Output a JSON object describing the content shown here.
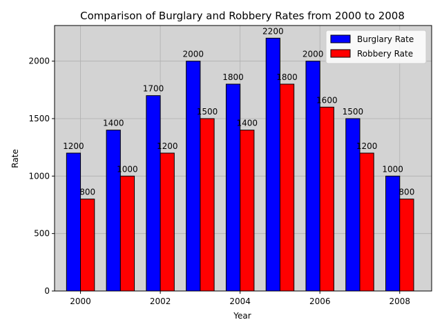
{
  "chart_data": {
    "type": "bar",
    "title": "Comparison of Burglary and Robbery Rates from 2000 to 2008",
    "xlabel": "Year",
    "ylabel": "Rate",
    "categories": [
      2000,
      2001,
      2002,
      2003,
      2004,
      2005,
      2006,
      2007,
      2008
    ],
    "x_ticks": [
      "2000",
      "2002",
      "2004",
      "2006",
      "2008"
    ],
    "y_ticks": [
      0,
      500,
      1000,
      1500,
      2000
    ],
    "ylim": [
      0,
      2310
    ],
    "xlim": [
      1999.35,
      2008.8
    ],
    "grid": true,
    "legend_position": "top-right",
    "background_color": "#d3d3d3",
    "series": [
      {
        "name": "Burglary Rate",
        "color": "#0000ff",
        "values": [
          1200,
          1400,
          1700,
          2000,
          1800,
          2200,
          2000,
          1500,
          1000
        ]
      },
      {
        "name": "Robbery Rate",
        "color": "#ff0000",
        "values": [
          800,
          1000,
          1200,
          1500,
          1400,
          1800,
          1600,
          1200,
          800
        ]
      }
    ]
  }
}
